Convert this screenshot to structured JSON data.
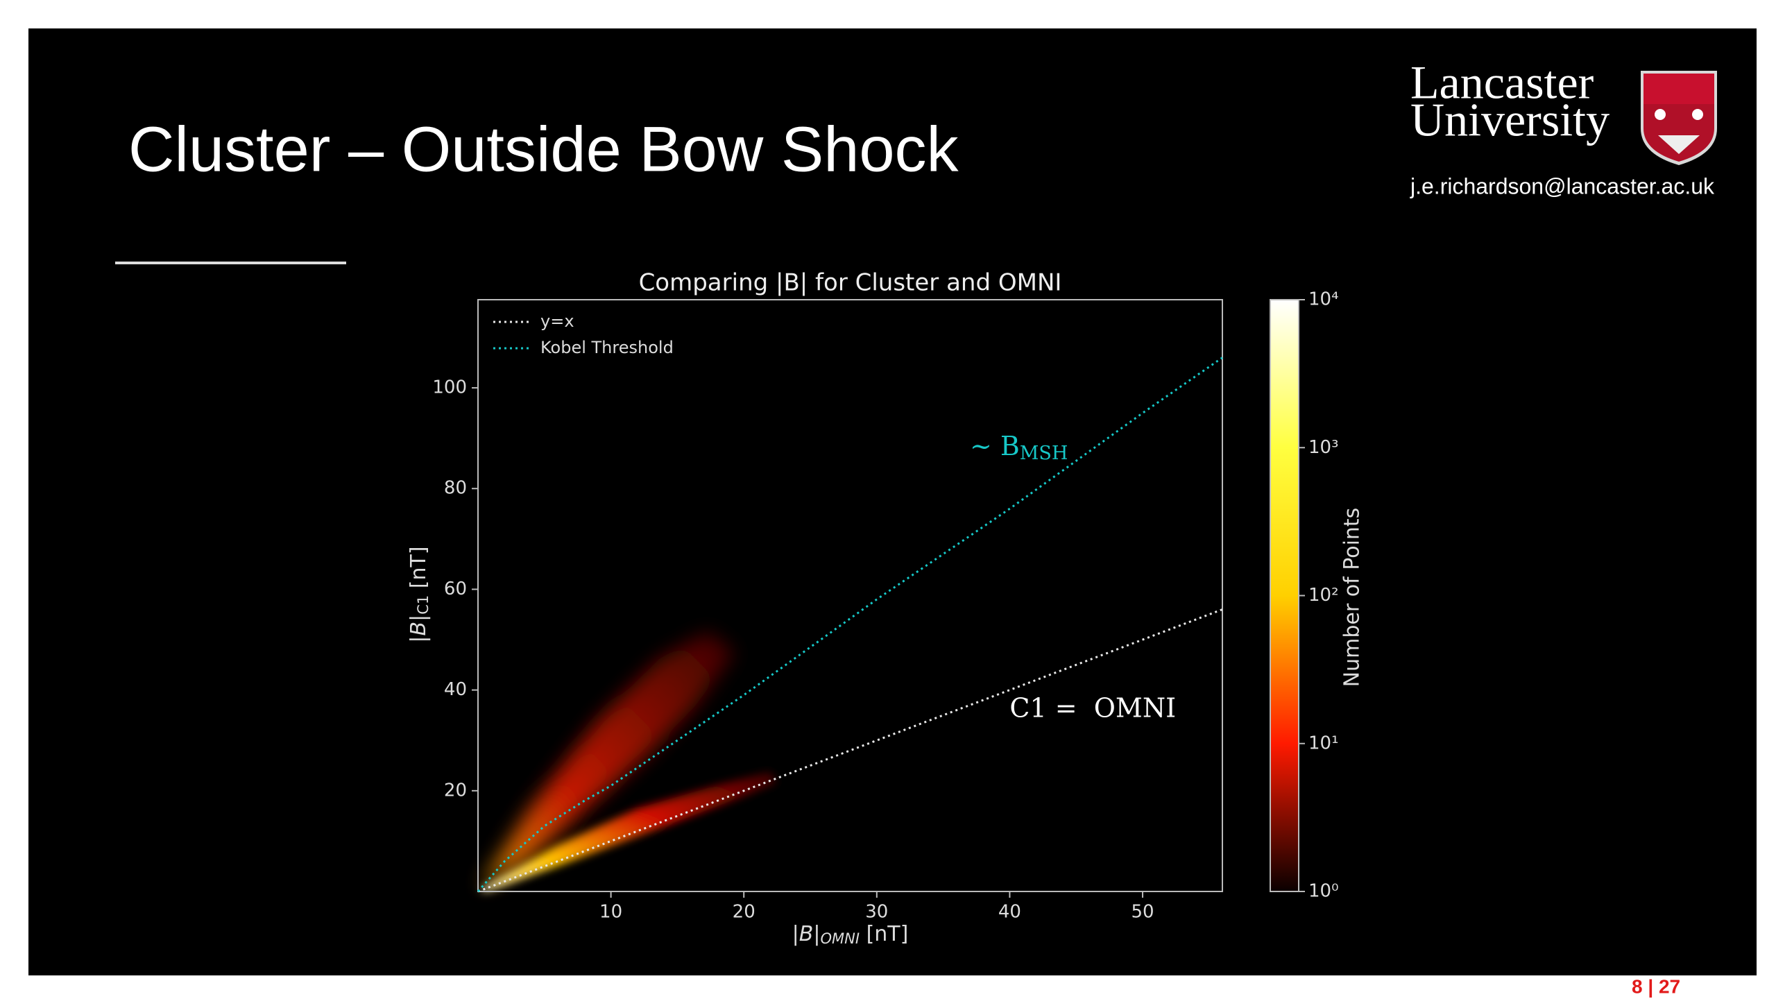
{
  "slide": {
    "title": "Cluster – Outside Bow Shock",
    "logo": [
      "Lancaster",
      "University"
    ],
    "email": "j.e.richardson@lancaster.ac.uk",
    "page": "8 | 27"
  },
  "chart_data": {
    "type": "hist2d",
    "title": "Comparing |B| for Cluster and OMNI",
    "xlabel": {
      "main": "|B|",
      "sub": "OMNI",
      "unit": " [nT]"
    },
    "ylabel": {
      "main": "|B|",
      "sub": "C1",
      "unit": " [nT]"
    },
    "xlim": [
      0,
      56
    ],
    "ylim": [
      0,
      117.5
    ],
    "xticks": [
      10,
      20,
      30,
      40,
      50
    ],
    "yticks": [
      20,
      40,
      60,
      80,
      100
    ],
    "legend": "upper left",
    "series": [
      {
        "name": "y=x",
        "color": "#e8e8e8",
        "x": [
          0,
          56
        ],
        "values": [
          0,
          56
        ]
      },
      {
        "name": "Kobel Threshold",
        "color": "#17c8c8",
        "x": [
          0,
          2,
          5,
          8,
          10,
          20,
          30,
          40,
          50,
          56
        ],
        "values": [
          0,
          6,
          13,
          18,
          21,
          39,
          58,
          76,
          95,
          106
        ]
      }
    ],
    "annotations": [
      {
        "text": "~ B",
        "sub": "MSH",
        "color": "#17c8c8",
        "x": 37,
        "y": 88
      },
      {
        "text": "C1 =  OMNI",
        "color": "#ffffff",
        "x": 40,
        "y": 36
      }
    ],
    "colorbar": {
      "label": "Number of Points",
      "scale": "log",
      "lim": [
        1,
        10000
      ],
      "ticks": [
        {
          "value": 1,
          "label": "10⁰"
        },
        {
          "value": 10,
          "label": "10¹"
        },
        {
          "value": 100,
          "label": "10²"
        },
        {
          "value": 1000,
          "label": "10³"
        },
        {
          "value": 10000,
          "label": "10⁴"
        }
      ],
      "colors": [
        "#0a0000",
        "#ff1a00",
        "#ffd000",
        "#ffff40",
        "#ffffff"
      ]
    }
  }
}
